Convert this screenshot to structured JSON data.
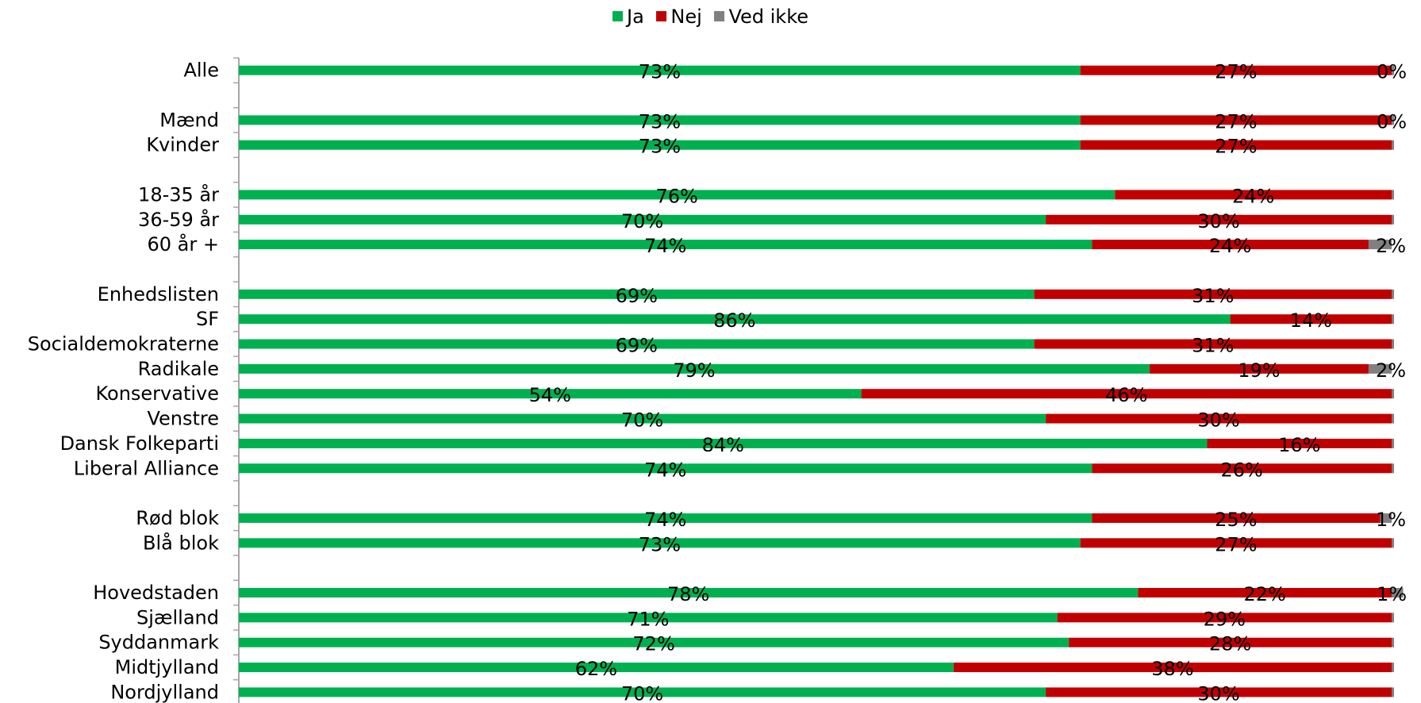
{
  "chart_data": {
    "type": "bar",
    "orientation": "horizontal",
    "stacked": "percent",
    "legend": {
      "position": "top",
      "entries": [
        "Ja",
        "Nej",
        "Ved ikke"
      ]
    },
    "grid": false,
    "xlim": [
      0,
      100
    ],
    "rows": [
      {
        "label": "Alle",
        "values": [
          73,
          27,
          0
        ],
        "labels": [
          "73%",
          "27%",
          "0%"
        ]
      },
      {
        "label": "",
        "gap": true
      },
      {
        "label": "Mænd",
        "values": [
          73,
          27,
          0
        ],
        "labels": [
          "73%",
          "27%",
          "0%"
        ]
      },
      {
        "label": "Kvinder",
        "values": [
          73,
          27,
          0
        ],
        "labels": [
          "73%",
          "27%",
          ""
        ]
      },
      {
        "label": "",
        "gap": true
      },
      {
        "label": "18-35 år",
        "values": [
          76,
          24,
          0
        ],
        "labels": [
          "76%",
          "24%",
          ""
        ]
      },
      {
        "label": "36-59 år",
        "values": [
          70,
          30,
          0
        ],
        "labels": [
          "70%",
          "30%",
          ""
        ]
      },
      {
        "label": "60 år +",
        "values": [
          74,
          24,
          2
        ],
        "labels": [
          "74%",
          "24%",
          "2%"
        ]
      },
      {
        "label": "",
        "gap": true
      },
      {
        "label": "Enhedslisten",
        "values": [
          69,
          31,
          0
        ],
        "labels": [
          "69%",
          "31%",
          ""
        ]
      },
      {
        "label": "SF",
        "values": [
          86,
          14,
          0
        ],
        "labels": [
          "86%",
          "14%",
          ""
        ]
      },
      {
        "label": "Socialdemokraterne",
        "values": [
          69,
          31,
          0
        ],
        "labels": [
          "69%",
          "31%",
          ""
        ]
      },
      {
        "label": "Radikale",
        "values": [
          79,
          19,
          2
        ],
        "labels": [
          "79%",
          "19%",
          "2%"
        ]
      },
      {
        "label": "Konservative",
        "values": [
          54,
          46,
          0
        ],
        "labels": [
          "54%",
          "46%",
          ""
        ]
      },
      {
        "label": "Venstre",
        "values": [
          70,
          30,
          0
        ],
        "labels": [
          "70%",
          "30%",
          ""
        ]
      },
      {
        "label": "Dansk Folkeparti",
        "values": [
          84,
          16,
          0
        ],
        "labels": [
          "84%",
          "16%",
          ""
        ]
      },
      {
        "label": "Liberal Alliance",
        "values": [
          74,
          26,
          0
        ],
        "labels": [
          "74%",
          "26%",
          ""
        ]
      },
      {
        "label": "",
        "gap": true
      },
      {
        "label": "Rød blok",
        "values": [
          74,
          25,
          1
        ],
        "labels": [
          "74%",
          "25%",
          "1%"
        ]
      },
      {
        "label": "Blå blok",
        "values": [
          73,
          27,
          0
        ],
        "labels": [
          "73%",
          "27%",
          ""
        ]
      },
      {
        "label": "",
        "gap": true
      },
      {
        "label": "Hovedstaden",
        "values": [
          78,
          22,
          1
        ],
        "labels": [
          "78%",
          "22%",
          "1%"
        ]
      },
      {
        "label": "Sjælland",
        "values": [
          71,
          29,
          0
        ],
        "labels": [
          "71%",
          "29%",
          ""
        ]
      },
      {
        "label": "Syddanmark",
        "values": [
          72,
          28,
          0
        ],
        "labels": [
          "72%",
          "28%",
          ""
        ]
      },
      {
        "label": "Midtjylland",
        "values": [
          62,
          38,
          0
        ],
        "labels": [
          "62%",
          "38%",
          ""
        ]
      },
      {
        "label": "Nordjylland",
        "values": [
          70,
          30,
          0
        ],
        "labels": [
          "70%",
          "30%",
          ""
        ]
      }
    ]
  },
  "colors": {
    "ja": "#00B050",
    "nej": "#C00000",
    "ved_ikke": "#808080",
    "axis": "#A6A6A6"
  }
}
